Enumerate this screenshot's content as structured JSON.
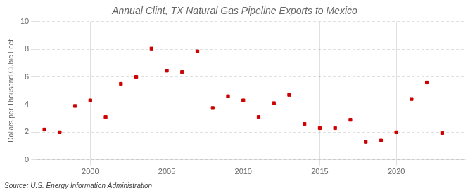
{
  "chart_data": {
    "type": "scatter",
    "title": "Annual Clint, TX Natural Gas Pipeline Exports to Mexico",
    "ylabel": "Dollars per Thousand Cubic Feet",
    "annotations": [
      "Source: U.S. Energy Information Administration"
    ],
    "x": [
      1997,
      1998,
      1999,
      2000,
      2001,
      2002,
      2003,
      2004,
      2005,
      2006,
      2007,
      2008,
      2009,
      2010,
      2011,
      2012,
      2013,
      2014,
      2015,
      2016,
      2017,
      2018,
      2019,
      2020,
      2021,
      2022,
      2023
    ],
    "values": [
      2.2,
      2.0,
      3.9,
      4.3,
      3.1,
      5.5,
      6.0,
      8.05,
      6.45,
      6.35,
      7.85,
      3.75,
      4.6,
      4.3,
      3.1,
      4.1,
      4.7,
      2.6,
      2.3,
      2.3,
      2.9,
      1.3,
      1.4,
      2.0,
      4.4,
      5.6,
      1.95
    ],
    "color": "#cc0000",
    "marker": "square",
    "xlim": [
      1996.5,
      2024.5
    ],
    "xticks": [
      2000,
      2005,
      2010,
      2015,
      2020
    ],
    "ylim": [
      0,
      10
    ],
    "yticks": [
      0,
      2,
      4,
      6,
      8,
      10
    ],
    "grid": true
  }
}
